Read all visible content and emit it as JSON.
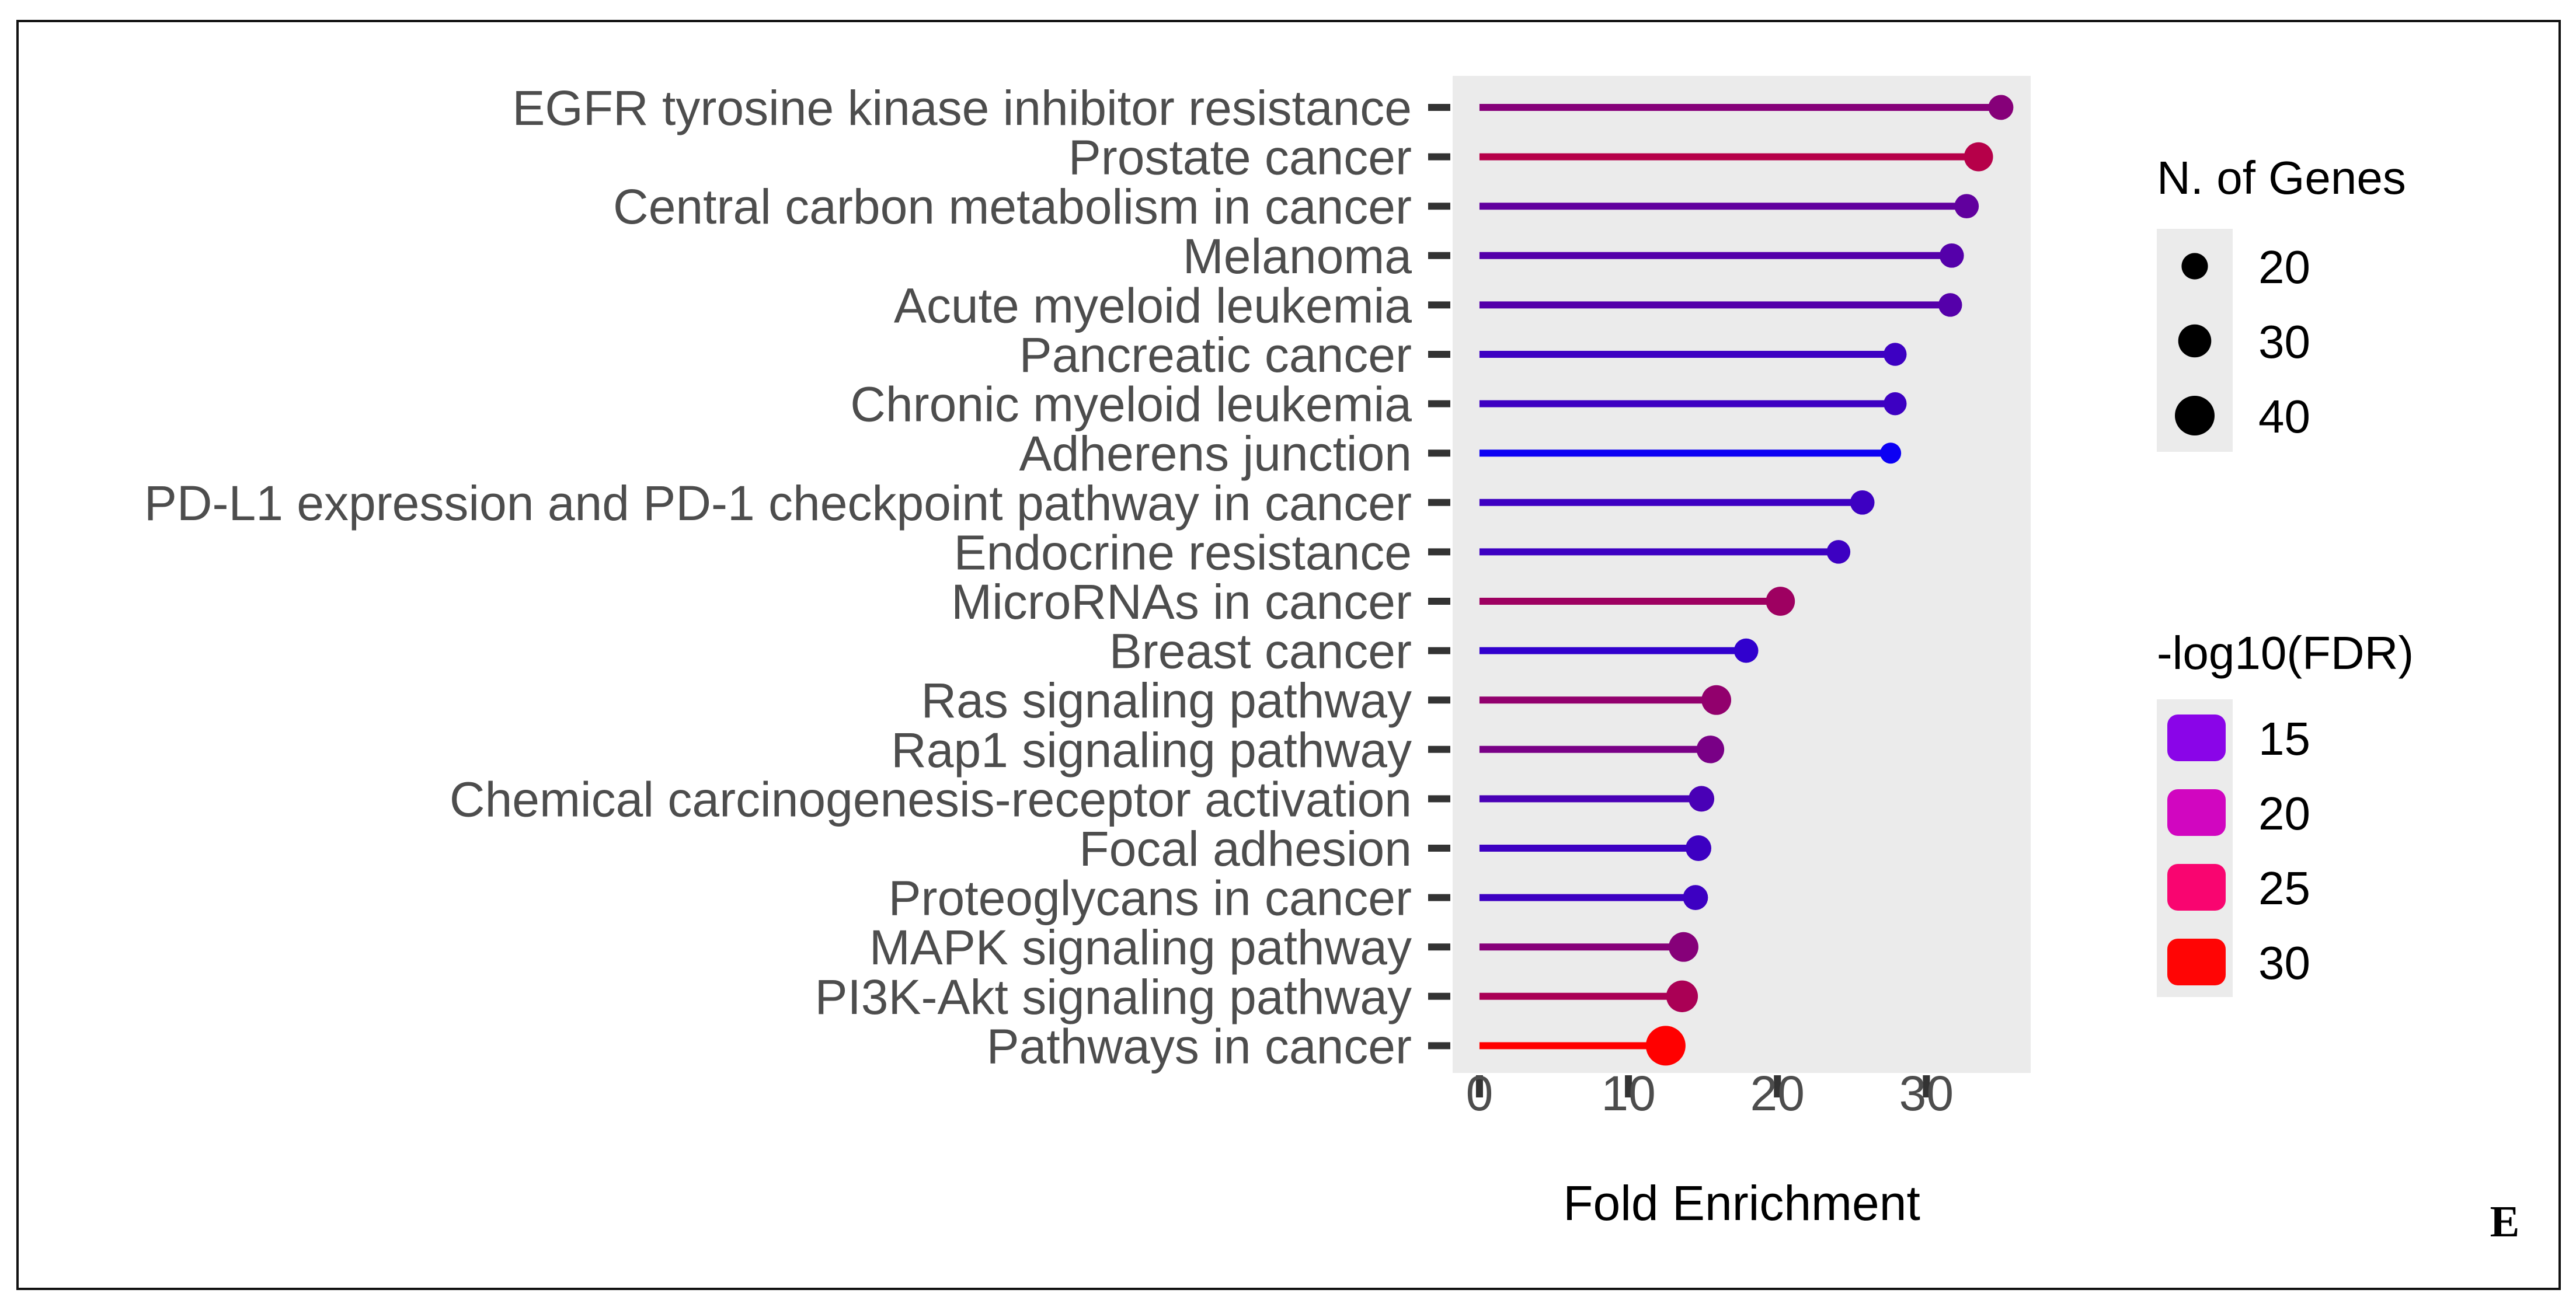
{
  "chart_data": {
    "type": "lollipop",
    "xlabel": "Fold Enrichment",
    "ylabel": "",
    "xlim": [
      -1.8,
      37
    ],
    "xticks": [
      0,
      10,
      20,
      30
    ],
    "panel_label": "E",
    "categories": [
      "EGFR tyrosine kinase inhibitor resistance",
      "Prostate cancer",
      "Central carbon metabolism in cancer",
      "Melanoma",
      "Acute myeloid leukemia",
      "Pancreatic cancer",
      "Chronic myeloid leukemia",
      "Adherens junction",
      "PD-L1 expression and PD-1 checkpoint pathway in cancer",
      "Endocrine resistance",
      "MicroRNAs in cancer",
      "Breast cancer",
      "Ras signaling pathway",
      "Rap1 signaling pathway",
      "Chemical carcinogenesis-receptor activation",
      "Focal adhesion",
      "Proteoglycans in cancer",
      "MAPK signaling pathway",
      "PI3K-Akt signaling pathway",
      "Pathways in cancer"
    ],
    "fold_enrichment": [
      35.0,
      33.5,
      32.7,
      31.7,
      31.6,
      27.9,
      27.9,
      27.6,
      25.7,
      24.1,
      20.2,
      17.9,
      15.9,
      15.5,
      14.9,
      14.7,
      14.5,
      13.7,
      13.6,
      12.5
    ],
    "n_genes": [
      18,
      24,
      17,
      17,
      16,
      15,
      15,
      12,
      17,
      16,
      24,
      17,
      25,
      22,
      19,
      19,
      18,
      25,
      28,
      40
    ],
    "neg_log10_fdr": [
      20,
      24,
      17,
      16,
      16,
      14,
      14,
      10,
      14,
      14,
      22,
      13,
      21,
      19,
      15,
      14,
      14,
      20,
      23,
      30
    ],
    "size_legend": {
      "title": "N. of Genes",
      "labels": [
        "20",
        "30",
        "40"
      ],
      "values": [
        20,
        30,
        40
      ]
    },
    "color_legend": {
      "title": "-log10(FDR)",
      "labels": [
        "15",
        "20",
        "25",
        "30"
      ],
      "values": [
        15,
        20,
        25,
        30
      ],
      "colors": [
        "#8a05e8",
        "#d106c0",
        "#f90570",
        "#ff0505"
      ]
    },
    "colors": {
      "low": "#0000ff",
      "high": "#ff0000",
      "panel_bg": "#ebebeb",
      "tick": "#333333"
    }
  }
}
